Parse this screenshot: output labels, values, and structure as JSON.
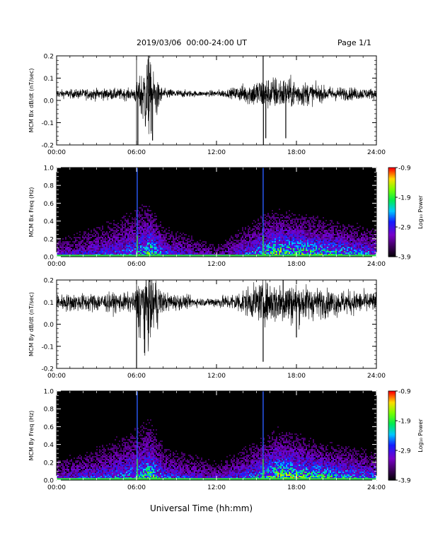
{
  "header": {
    "title": "2019/03/06  00:00-24:00 UT",
    "page_label": "Page 1/1"
  },
  "xlabel": "Universal Time (hh:mm)",
  "colorbar": {
    "label": "Log₁₀ Power",
    "ticks": [
      -0.9,
      -1.9,
      -2.9,
      -3.9
    ],
    "tick_labels": [
      "-0.9",
      "-1.9",
      "-2.9",
      "-3.9"
    ],
    "range": [
      -3.9,
      -0.9
    ]
  },
  "chart_data": [
    {
      "type": "line",
      "ylabel": "MCM Bx dB/dt (nT/sec)",
      "xlim": [
        0,
        24
      ],
      "ylim": [
        -0.2,
        0.2
      ],
      "xticks": [
        "00:00",
        "06:00",
        "12:00",
        "18:00",
        "24:00"
      ],
      "yticks": [
        "0.2",
        "0.1",
        "0.0",
        "-0.1",
        "-0.2"
      ],
      "ytick_values": [
        0.2,
        0.1,
        0.0,
        -0.1,
        -0.2
      ],
      "baseline": 0.03,
      "envelope": [
        {
          "x": 0.0,
          "up": 0.015,
          "dn": 0.015
        },
        {
          "x": 3.0,
          "up": 0.02,
          "dn": 0.025
        },
        {
          "x": 5.8,
          "up": 0.02,
          "dn": 0.025
        },
        {
          "x": 6.2,
          "up": 0.06,
          "dn": 0.08
        },
        {
          "x": 6.8,
          "up": 0.15,
          "dn": 0.2
        },
        {
          "x": 7.5,
          "up": 0.05,
          "dn": 0.1
        },
        {
          "x": 8.0,
          "up": 0.02,
          "dn": 0.02
        },
        {
          "x": 11.0,
          "up": 0.01,
          "dn": 0.01
        },
        {
          "x": 13.0,
          "up": 0.02,
          "dn": 0.015
        },
        {
          "x": 15.2,
          "up": 0.06,
          "dn": 0.06
        },
        {
          "x": 16.5,
          "up": 0.07,
          "dn": 0.06
        },
        {
          "x": 18.5,
          "up": 0.05,
          "dn": 0.05
        },
        {
          "x": 20.0,
          "up": 0.03,
          "dn": 0.03
        },
        {
          "x": 24.0,
          "up": 0.02,
          "dn": 0.02
        }
      ],
      "spikes": [
        {
          "x": 6.1,
          "y": -0.2
        },
        {
          "x": 6.9,
          "y": 0.2
        },
        {
          "x": 7.2,
          "y": -0.18
        },
        {
          "x": 15.5,
          "y": 0.2
        },
        {
          "x": 15.52,
          "y": -0.2
        },
        {
          "x": 15.7,
          "y": -0.17
        },
        {
          "x": 17.2,
          "y": -0.17
        }
      ]
    },
    {
      "type": "heatmap",
      "ylabel": "MCM Bx Freq (Hz)",
      "xlim": [
        0,
        24
      ],
      "ylim": [
        0.0,
        1.0
      ],
      "xticks": [
        "00:00",
        "06:00",
        "12:00",
        "18:00",
        "24:00"
      ],
      "yticks": [
        "1.0",
        "0.8",
        "0.6",
        "0.4",
        "0.2",
        "0.0"
      ],
      "ytick_values": [
        1.0,
        0.8,
        0.6,
        0.4,
        0.2,
        0.0
      ],
      "activity": [
        {
          "x": 0.0,
          "level": 0.35,
          "fmax": 0.3
        },
        {
          "x": 4.0,
          "level": 0.45,
          "fmax": 0.5
        },
        {
          "x": 6.0,
          "level": 0.55,
          "fmax": 0.6
        },
        {
          "x": 7.0,
          "level": 0.8,
          "fmax": 0.55
        },
        {
          "x": 8.0,
          "level": 0.5,
          "fmax": 0.4
        },
        {
          "x": 12.0,
          "level": 0.3,
          "fmax": 0.25
        },
        {
          "x": 15.0,
          "level": 0.6,
          "fmax": 0.45
        },
        {
          "x": 16.5,
          "level": 0.9,
          "fmax": 0.45
        },
        {
          "x": 20.0,
          "level": 0.75,
          "fmax": 0.4
        },
        {
          "x": 24.0,
          "level": 0.55,
          "fmax": 0.35
        }
      ],
      "stripes": [
        6.05,
        15.5
      ]
    },
    {
      "type": "line",
      "ylabel": "MCM By dB/dt (nT/sec)",
      "xlim": [
        0,
        24
      ],
      "ylim": [
        -0.2,
        0.2
      ],
      "xticks": [
        "00:00",
        "06:00",
        "12:00",
        "18:00",
        "24:00"
      ],
      "yticks": [
        "0.2",
        "0.1",
        "0.0",
        "-0.1",
        "-0.2"
      ],
      "ytick_values": [
        0.2,
        0.1,
        0.0,
        -0.1,
        -0.2
      ],
      "baseline": 0.1,
      "envelope": [
        {
          "x": 0.0,
          "up": 0.03,
          "dn": 0.035
        },
        {
          "x": 3.0,
          "up": 0.035,
          "dn": 0.04
        },
        {
          "x": 5.8,
          "up": 0.035,
          "dn": 0.04
        },
        {
          "x": 6.5,
          "up": 0.12,
          "dn": 0.2
        },
        {
          "x": 7.2,
          "up": 0.12,
          "dn": 0.16
        },
        {
          "x": 8.0,
          "up": 0.04,
          "dn": 0.04
        },
        {
          "x": 11.0,
          "up": 0.015,
          "dn": 0.015
        },
        {
          "x": 13.0,
          "up": 0.03,
          "dn": 0.03
        },
        {
          "x": 15.5,
          "up": 0.08,
          "dn": 0.08
        },
        {
          "x": 17.5,
          "up": 0.08,
          "dn": 0.09
        },
        {
          "x": 20.0,
          "up": 0.05,
          "dn": 0.06
        },
        {
          "x": 24.0,
          "up": 0.04,
          "dn": 0.04
        }
      ],
      "spikes": [
        {
          "x": 6.0,
          "y": -0.2
        },
        {
          "x": 6.6,
          "y": -0.13
        },
        {
          "x": 15.5,
          "y": -0.17
        },
        {
          "x": 17.0,
          "y": 0.2
        },
        {
          "x": 18.0,
          "y": -0.06
        }
      ]
    },
    {
      "type": "heatmap",
      "ylabel": "MCM By Freq (Hz)",
      "xlim": [
        0,
        24
      ],
      "ylim": [
        0.0,
        1.0
      ],
      "xticks": [
        "00:00",
        "06:00",
        "12:00",
        "18:00",
        "24:00"
      ],
      "yticks": [
        "1.0",
        "0.8",
        "0.6",
        "0.4",
        "0.2",
        "0.0"
      ],
      "ytick_values": [
        1.0,
        0.8,
        0.6,
        0.4,
        0.2,
        0.0
      ],
      "activity": [
        {
          "x": 0.0,
          "level": 0.4,
          "fmax": 0.3
        },
        {
          "x": 4.0,
          "level": 0.5,
          "fmax": 0.5
        },
        {
          "x": 6.0,
          "level": 0.6,
          "fmax": 0.6
        },
        {
          "x": 7.0,
          "level": 0.8,
          "fmax": 0.6
        },
        {
          "x": 8.0,
          "level": 0.5,
          "fmax": 0.45
        },
        {
          "x": 12.0,
          "level": 0.35,
          "fmax": 0.3
        },
        {
          "x": 15.0,
          "level": 0.6,
          "fmax": 0.45
        },
        {
          "x": 16.5,
          "level": 0.9,
          "fmax": 0.5
        },
        {
          "x": 20.0,
          "level": 0.75,
          "fmax": 0.4
        },
        {
          "x": 24.0,
          "level": 0.55,
          "fmax": 0.35
        }
      ],
      "stripes": [
        6.05,
        15.5
      ]
    }
  ]
}
